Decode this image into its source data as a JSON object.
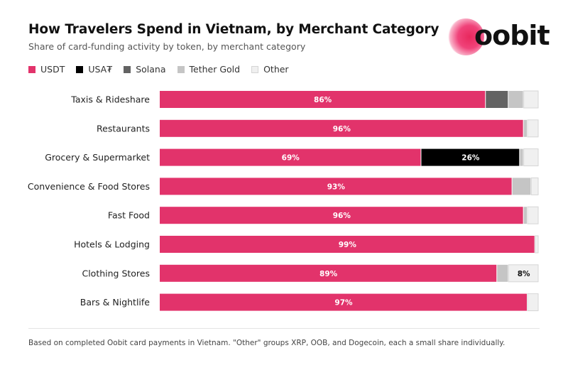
{
  "title": "How Travelers Spend in Vietnam, by Merchant Category",
  "subtitle": "Share of card-funding activity by token, by merchant category",
  "logo": {
    "text": "oobit",
    "accent_color": "#e8285d"
  },
  "legend": [
    {
      "label": "USDT",
      "color": "#e2336b"
    },
    {
      "label": "USA₮",
      "color": "#000000"
    },
    {
      "label": "Solana",
      "color": "#636363"
    },
    {
      "label": "Tether Gold",
      "color": "#c5c5c5"
    },
    {
      "label": "Other",
      "color": "#f0f0f0"
    }
  ],
  "chart_data": {
    "type": "bar",
    "orientation": "horizontal",
    "stacked": true,
    "normalized_to": 100,
    "categories": [
      "Taxis & Rideshare",
      "Restaurants",
      "Grocery & Supermarket",
      "Convenience & Food Stores",
      "Fast Food",
      "Hotels & Lodging",
      "Clothing Stores",
      "Bars & Nightlife"
    ],
    "series": [
      {
        "name": "USDT",
        "color": "#e2336b",
        "values": [
          86,
          96,
          69,
          93,
          96,
          99,
          89,
          97
        ]
      },
      {
        "name": "USA₮",
        "color": "#000000",
        "values": [
          0,
          0,
          26,
          0,
          0,
          0,
          0,
          0
        ]
      },
      {
        "name": "Solana",
        "color": "#636363",
        "values": [
          6,
          0,
          0,
          0,
          0,
          0,
          0,
          0
        ]
      },
      {
        "name": "Tether Gold",
        "color": "#c5c5c5",
        "values": [
          4,
          1,
          1,
          5,
          1,
          0,
          3,
          0
        ]
      },
      {
        "name": "Other",
        "color": "#f0f0f0",
        "values": [
          4,
          3,
          4,
          2,
          3,
          1,
          8,
          3
        ]
      }
    ],
    "data_labels": [
      [
        "86%",
        "",
        "",
        "",
        ""
      ],
      [
        "96%",
        "",
        "",
        "",
        ""
      ],
      [
        "69%",
        "26%",
        "",
        "",
        ""
      ],
      [
        "93%",
        "",
        "",
        "",
        ""
      ],
      [
        "96%",
        "",
        "",
        "",
        ""
      ],
      [
        "99%",
        "",
        "",
        "",
        ""
      ],
      [
        "89%",
        "",
        "",
        "",
        "8%"
      ],
      [
        "97%",
        "",
        "",
        "",
        ""
      ]
    ],
    "xlim": [
      0,
      100
    ],
    "grid": false,
    "legend_position": "top-left"
  },
  "note": "Based on completed Oobit card payments in Vietnam. \"Other\" groups XRP, OOB, and Dogecoin, each a small share individually."
}
